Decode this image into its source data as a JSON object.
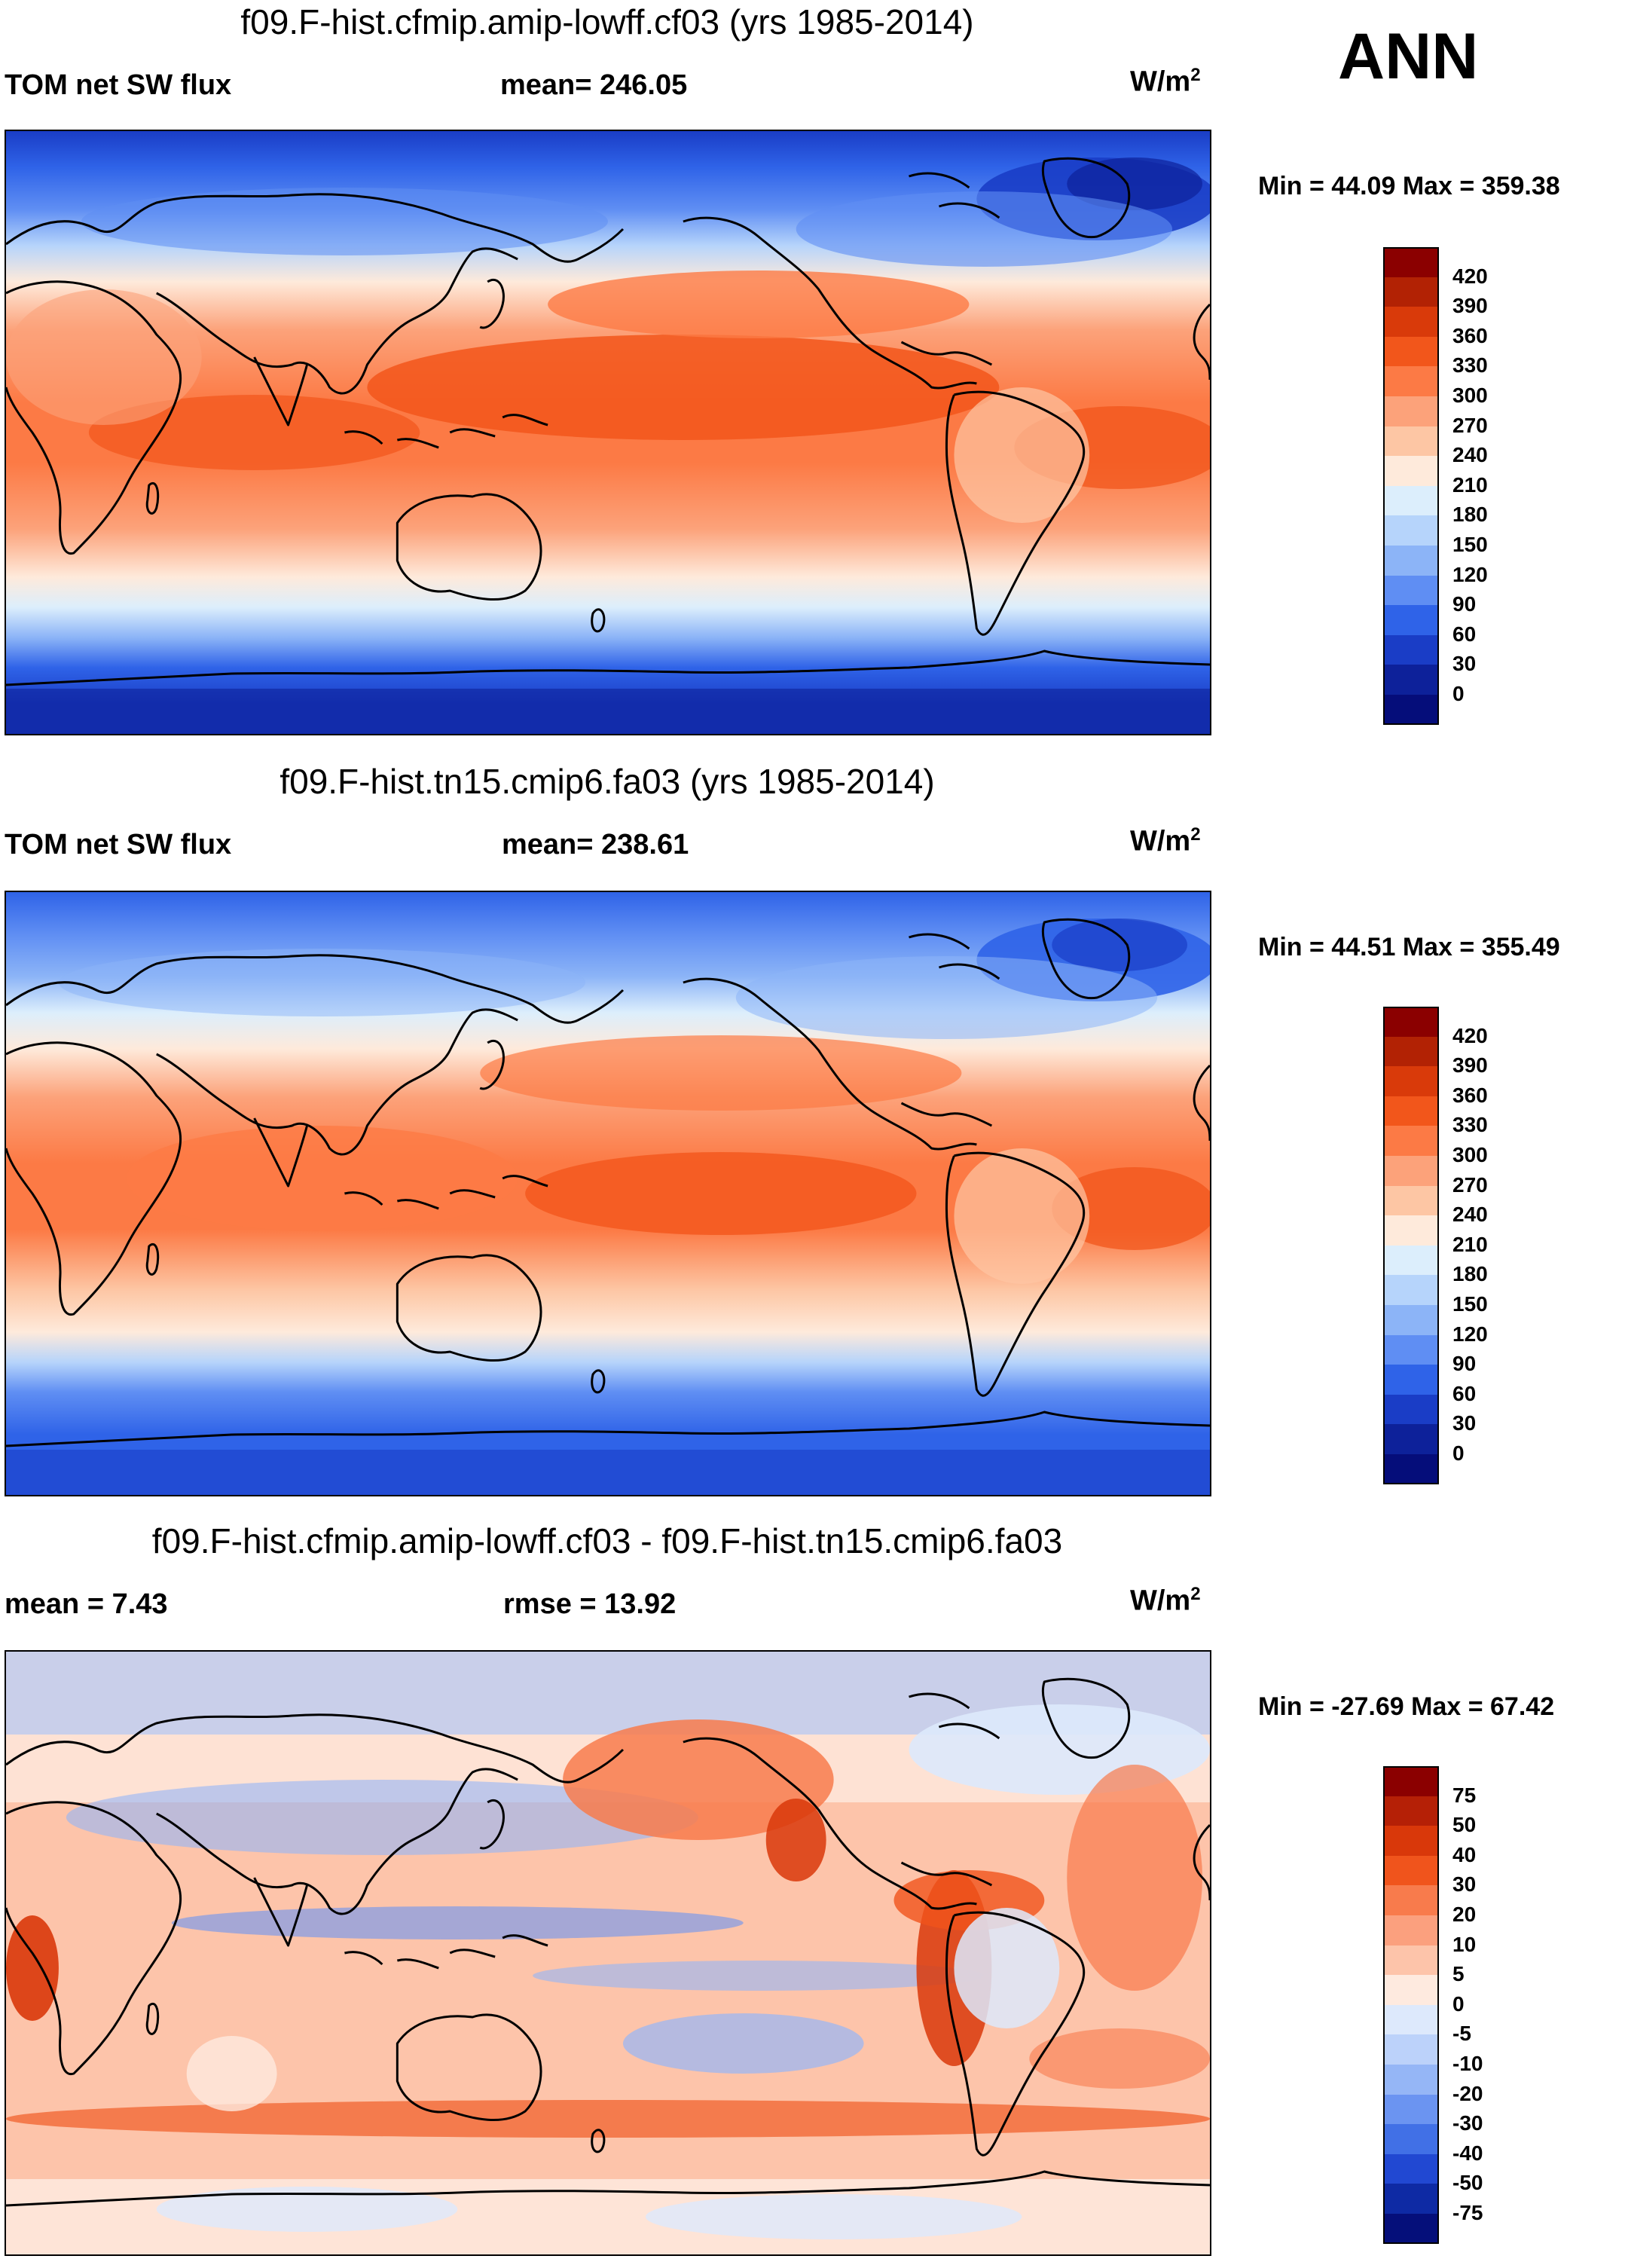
{
  "season": "ANN",
  "panels": [
    {
      "title": "f09.F-hist.cfmip.amip-lowff.cf03 (yrs 1985-2014)",
      "left_label": "TOM net SW flux",
      "center_label": "mean= 246.05",
      "units": "W/m",
      "units_exp": "2",
      "minmax": "Min =  44.09 Max = 359.38",
      "variant": "a"
    },
    {
      "title": "f09.F-hist.tn15.cmip6.fa03 (yrs 1985-2014)",
      "left_label": "TOM net SW flux",
      "center_label": "mean= 238.61",
      "units": "W/m",
      "units_exp": "2",
      "minmax": "Min =  44.51 Max = 355.49",
      "variant": "b"
    },
    {
      "title": "f09.F-hist.cfmip.amip-lowff.cf03 - f09.F-hist.tn15.cmip6.fa03",
      "left_label": "mean =   7.43",
      "center_label": "rmse =  13.92",
      "units": "W/m",
      "units_exp": "2",
      "minmax": "Min = -27.69 Max =  67.42",
      "variant": "diff"
    }
  ],
  "colorbars": {
    "abs": {
      "colors": [
        "#8b0000",
        "#b22204",
        "#d93a0a",
        "#f2561b",
        "#fc7a45",
        "#fca27a",
        "#fdc6a4",
        "#feeadb",
        "#dceefc",
        "#b6d4fb",
        "#8cb4f7",
        "#5f8ef3",
        "#2f63e8",
        "#1a3dc6",
        "#0d219a",
        "#050d7a"
      ],
      "labels": [
        "420",
        "390",
        "360",
        "330",
        "300",
        "270",
        "240",
        "210",
        "180",
        "150",
        "120",
        "90",
        "60",
        "30",
        "0"
      ]
    },
    "diff": {
      "colors": [
        "#8b0000",
        "#b52006",
        "#d9380a",
        "#f0541c",
        "#f87b4c",
        "#fba07e",
        "#fdc4aa",
        "#feeadf",
        "#dde9fc",
        "#bcd2fa",
        "#95b6f6",
        "#6b94f1",
        "#4170e6",
        "#2148d2",
        "#0e2aa4",
        "#050f7a"
      ],
      "labels": [
        "75",
        "50",
        "40",
        "30",
        "20",
        "10",
        "5",
        "0",
        "-5",
        "-10",
        "-20",
        "-30",
        "-40",
        "-50",
        "-75"
      ]
    }
  },
  "chart_data": [
    {
      "type": "heatmap",
      "title": "f09.F-hist.cfmip.amip-lowff.cf03 (yrs 1985-2014)",
      "variable": "TOM net SW flux",
      "units": "W/m2",
      "mean": 246.05,
      "min": 44.09,
      "max": 359.38,
      "levels": [
        0,
        30,
        60,
        90,
        120,
        150,
        180,
        210,
        240,
        270,
        300,
        330,
        360,
        390,
        420
      ]
    },
    {
      "type": "heatmap",
      "title": "f09.F-hist.tn15.cmip6.fa03 (yrs 1985-2014)",
      "variable": "TOM net SW flux",
      "units": "W/m2",
      "mean": 238.61,
      "min": 44.51,
      "max": 355.49,
      "levels": [
        0,
        30,
        60,
        90,
        120,
        150,
        180,
        210,
        240,
        270,
        300,
        330,
        360,
        390,
        420
      ]
    },
    {
      "type": "heatmap",
      "title": "f09.F-hist.cfmip.amip-lowff.cf03 - f09.F-hist.tn15.cmip6.fa03",
      "units": "W/m2",
      "mean": 7.43,
      "rmse": 13.92,
      "min": -27.69,
      "max": 67.42,
      "levels": [
        -75,
        -50,
        -40,
        -30,
        -20,
        -10,
        -5,
        0,
        5,
        10,
        20,
        30,
        40,
        50,
        75
      ]
    }
  ]
}
